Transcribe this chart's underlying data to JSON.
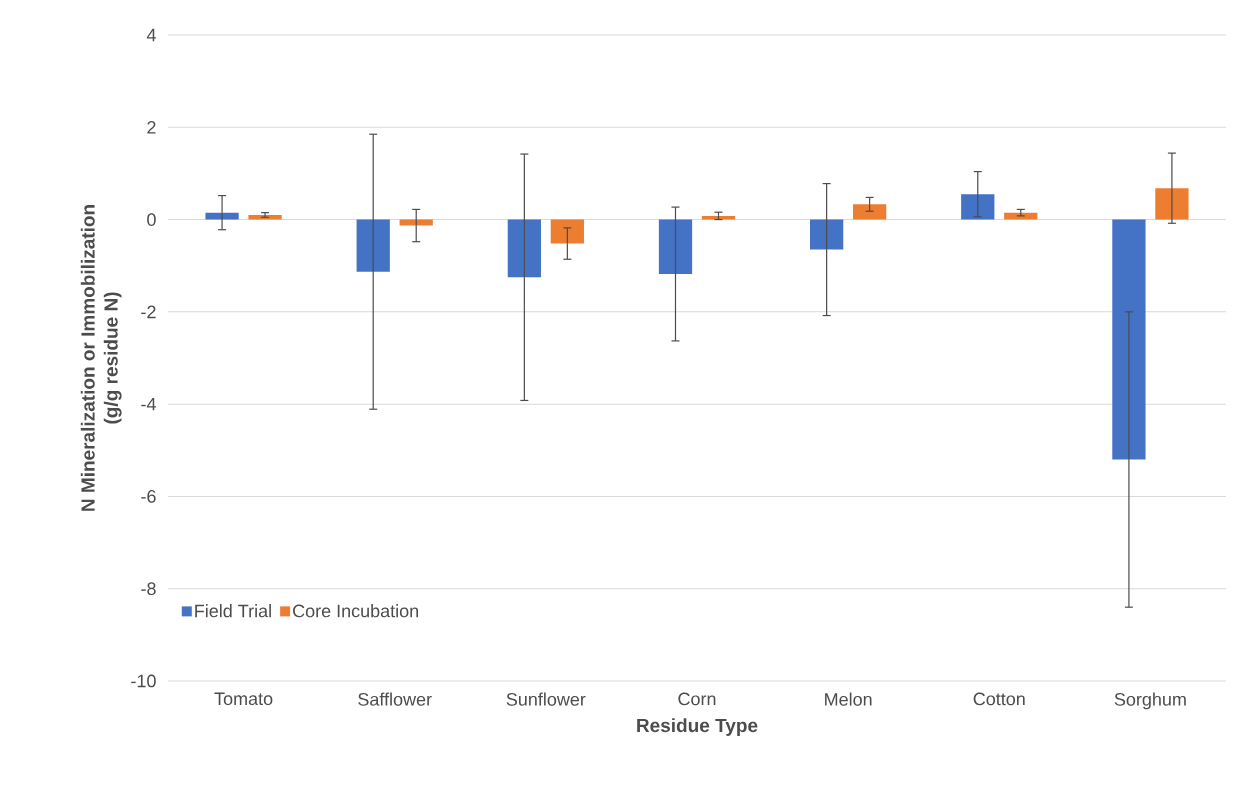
{
  "chart_data": {
    "type": "bar",
    "xlabel": "Residue Type",
    "ylabel": "N Mineralization or Immobilization\n(g/g residue N)",
    "categories": [
      "Tomato",
      "Safflower",
      "Sunflower",
      "Corn",
      "Melon",
      "Cotton",
      "Sorghum"
    ],
    "series": [
      {
        "name": "Field Trial",
        "color": "#4472c4",
        "values": [
          0.15,
          -1.13,
          -1.25,
          -1.18,
          -0.65,
          0.55,
          -5.2
        ],
        "errors": [
          0.37,
          2.98,
          2.67,
          1.45,
          1.43,
          0.49,
          3.2
        ]
      },
      {
        "name": "Core Incubation",
        "color": "#ed7d31",
        "values": [
          0.1,
          -0.13,
          -0.52,
          0.08,
          0.33,
          0.15,
          0.68
        ],
        "errors": [
          0.05,
          0.35,
          0.34,
          0.08,
          0.15,
          0.07,
          0.76
        ]
      }
    ],
    "ylim": [
      -10,
      4
    ],
    "yticks": [
      -10,
      -8,
      -6,
      -4,
      -2,
      0,
      2,
      4
    ],
    "grid": "y",
    "legend": "bottom left"
  }
}
